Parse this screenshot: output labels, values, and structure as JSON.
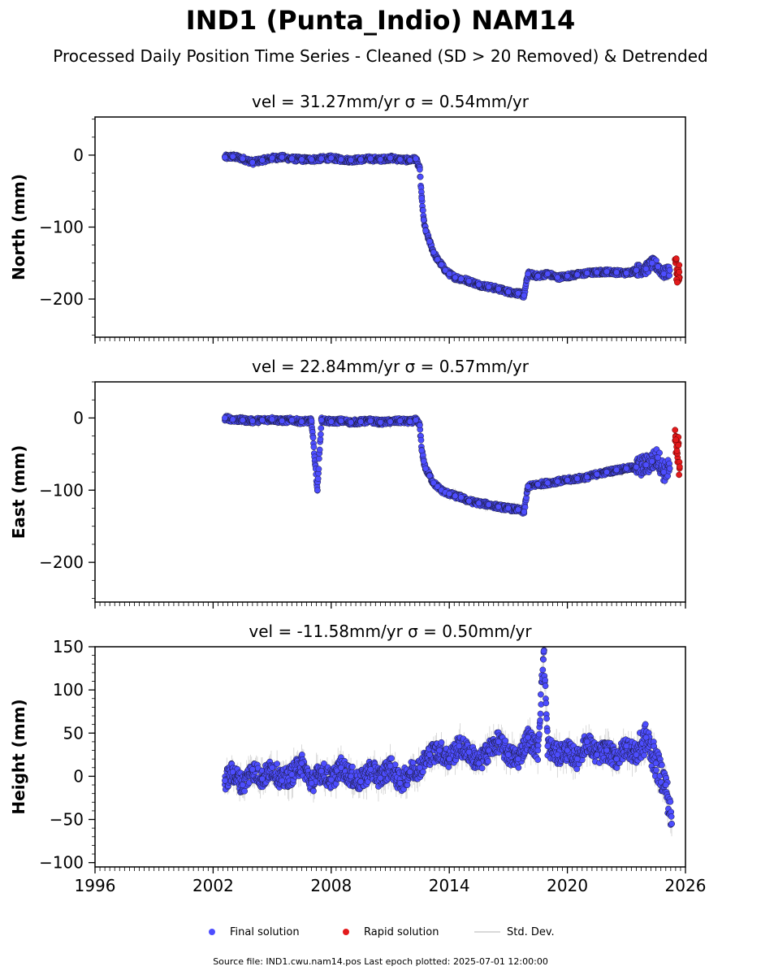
{
  "title": "IND1 (Punta_Indio) NAM14",
  "subtitle": "Processed Daily Position Time Series - Cleaned (SD > 20 Removed) & Detrended",
  "footer": "Source file: IND1.cwu.nam14.pos  Last epoch plotted: 2025-07-01 12:00:00",
  "legend": {
    "final": "Final solution",
    "rapid": "Rapid solution",
    "std": "Std. Dev."
  },
  "colors": {
    "final": "#4d4dff",
    "final_edge": "#1a1a3a",
    "rapid": "#e31a1c",
    "std": "#d9d9d9"
  },
  "chart_data": [
    {
      "type": "scatter",
      "title": "vel = 31.27mm/yr   σ = 0.54mm/yr",
      "ylabel": "North (mm)",
      "xlim": [
        1996,
        2026
      ],
      "ylim": [
        -253,
        53
      ],
      "yticks": [
        0,
        -100,
        -200
      ],
      "xticks": [
        1996,
        2002,
        2008,
        2014,
        2020,
        2026
      ],
      "series": [
        {
          "name": "Final solution",
          "x": [
            2002.6,
            2003.0,
            2003.5,
            2004.0,
            2004.5,
            2005.0,
            2005.5,
            2006.0,
            2006.5,
            2007.0,
            2007.5,
            2008.0,
            2008.5,
            2009.0,
            2009.5,
            2010.0,
            2010.5,
            2011.0,
            2011.5,
            2012.0,
            2012.3,
            2012.5,
            2012.6,
            2012.7,
            2012.8,
            2013.0,
            2013.2,
            2013.4,
            2013.6,
            2013.8,
            2014.0,
            2014.3,
            2014.6,
            2015.0,
            2015.5,
            2016.0,
            2016.5,
            2017.0,
            2017.5,
            2017.8,
            2018.0,
            2018.5,
            2019.0,
            2019.5,
            2020.0,
            2020.5,
            2021.0,
            2021.5,
            2022.0,
            2022.5,
            2023.0,
            2023.5,
            2024.0,
            2024.3,
            2024.6,
            2024.9,
            2025.2
          ],
          "y": [
            -3,
            -2,
            -5,
            -10,
            -7,
            -4,
            -3,
            -5,
            -6,
            -6,
            -5,
            -4,
            -6,
            -7,
            -6,
            -5,
            -6,
            -4,
            -6,
            -7,
            -5,
            -20,
            -60,
            -90,
            -105,
            -120,
            -135,
            -145,
            -152,
            -160,
            -165,
            -170,
            -172,
            -175,
            -180,
            -183,
            -186,
            -190,
            -192,
            -195,
            -165,
            -168,
            -165,
            -170,
            -168,
            -166,
            -164,
            -163,
            -162,
            -163,
            -164,
            -160,
            -158,
            -150,
            -155,
            -165,
            -160
          ]
        },
        {
          "name": "Rapid solution",
          "x": [
            2025.5,
            2025.55,
            2025.6,
            2025.65,
            2025.7
          ],
          "y": [
            -150,
            -165,
            -175,
            -160,
            -170
          ]
        }
      ]
    },
    {
      "type": "scatter",
      "title": "vel = 22.84mm/yr   σ = 0.57mm/yr",
      "ylabel": "East (mm)",
      "xlim": [
        1996,
        2026
      ],
      "ylim": [
        -255,
        50
      ],
      "yticks": [
        0,
        -100,
        -200
      ],
      "xticks": [
        1996,
        2002,
        2008,
        2014,
        2020,
        2026
      ],
      "series": [
        {
          "name": "Final solution",
          "x": [
            2002.6,
            2003.0,
            2003.5,
            2004.0,
            2004.5,
            2005.0,
            2005.5,
            2006.0,
            2006.5,
            2007.0,
            2007.3,
            2007.5,
            2008.0,
            2008.5,
            2009.0,
            2009.5,
            2010.0,
            2010.5,
            2011.0,
            2011.5,
            2012.0,
            2012.3,
            2012.5,
            2012.6,
            2012.7,
            2012.8,
            2013.0,
            2013.2,
            2013.4,
            2013.6,
            2013.8,
            2014.0,
            2014.3,
            2014.6,
            2015.0,
            2015.5,
            2016.0,
            2016.5,
            2017.0,
            2017.5,
            2017.8,
            2018.0,
            2018.5,
            2019.0,
            2019.5,
            2020.0,
            2020.5,
            2021.0,
            2021.5,
            2022.0,
            2022.5,
            2023.0,
            2023.5,
            2024.0,
            2024.3,
            2024.6,
            2024.9,
            2025.2
          ],
          "y": [
            0,
            -2,
            -3,
            -4,
            -3,
            -2,
            -4,
            -3,
            -5,
            -4,
            -100,
            -3,
            -5,
            -4,
            -6,
            -5,
            -4,
            -6,
            -5,
            -4,
            -5,
            -3,
            -10,
            -45,
            -60,
            -70,
            -80,
            -90,
            -95,
            -100,
            -103,
            -105,
            -108,
            -110,
            -115,
            -118,
            -120,
            -123,
            -125,
            -127,
            -130,
            -95,
            -92,
            -90,
            -88,
            -86,
            -84,
            -82,
            -78,
            -75,
            -72,
            -70,
            -68,
            -65,
            -60,
            -55,
            -75,
            -70
          ]
        },
        {
          "name": "Rapid solution",
          "x": [
            2025.5,
            2025.55,
            2025.6,
            2025.65,
            2025.7
          ],
          "y": [
            -25,
            -40,
            -55,
            -35,
            -70
          ]
        }
      ]
    },
    {
      "type": "scatter",
      "title": "vel = -11.58mm/yr   σ = 0.50mm/yr",
      "ylabel": "Height (mm)",
      "xlim": [
        1996,
        2026
      ],
      "ylim": [
        -105,
        150
      ],
      "yticks": [
        150,
        100,
        50,
        0,
        -50,
        -100
      ],
      "xticks": [
        1996,
        2002,
        2008,
        2014,
        2020,
        2026
      ],
      "series": [
        {
          "name": "Final solution",
          "x": [
            2002.6,
            2003.0,
            2003.5,
            2004.0,
            2004.5,
            2005.0,
            2005.5,
            2006.0,
            2006.5,
            2007.0,
            2007.5,
            2008.0,
            2008.5,
            2009.0,
            2009.5,
            2010.0,
            2010.5,
            2011.0,
            2011.5,
            2012.0,
            2012.5,
            2013.0,
            2013.5,
            2014.0,
            2014.5,
            2015.0,
            2015.5,
            2016.0,
            2016.5,
            2017.0,
            2017.5,
            2018.0,
            2018.5,
            2018.8,
            2019.0,
            2019.5,
            2020.0,
            2020.5,
            2021.0,
            2021.5,
            2022.0,
            2022.5,
            2023.0,
            2023.5,
            2024.0,
            2024.5,
            2025.0,
            2025.3
          ],
          "y": [
            -5,
            5,
            -10,
            8,
            -3,
            10,
            -5,
            2,
            15,
            -8,
            6,
            -4,
            10,
            0,
            -6,
            8,
            -2,
            12,
            -8,
            5,
            10,
            25,
            30,
            20,
            35,
            28,
            15,
            30,
            40,
            25,
            20,
            45,
            30,
            145,
            35,
            25,
            30,
            20,
            40,
            25,
            30,
            20,
            35,
            25,
            45,
            15,
            -10,
            -55
          ]
        }
      ]
    }
  ]
}
